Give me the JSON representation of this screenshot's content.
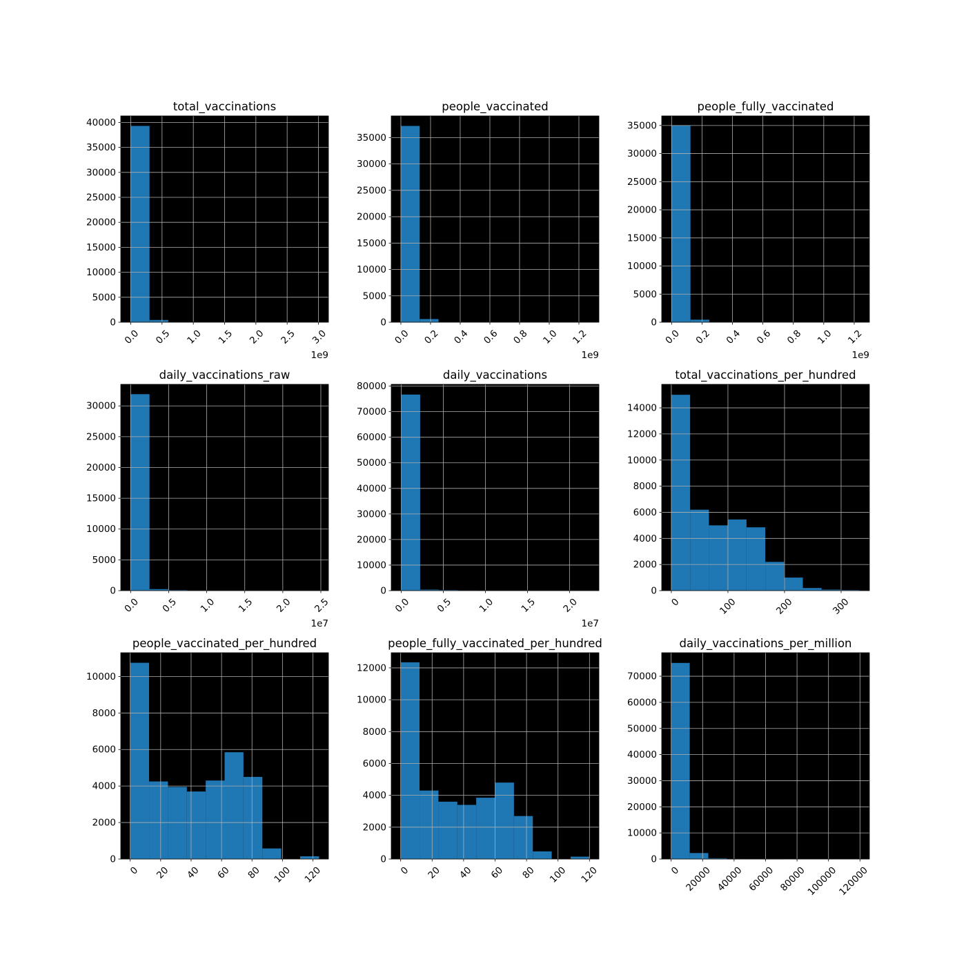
{
  "chart_data": [
    {
      "type": "bar",
      "title": "total_vaccinations",
      "xlim": [
        -0.16,
        3.16
      ],
      "ylim": [
        0,
        41300
      ],
      "x_ticks": [
        "0.0",
        "0.5",
        "1.0",
        "1.5",
        "2.0",
        "2.5",
        "3.0"
      ],
      "x_tick_values": [
        0,
        0.5,
        1.0,
        1.5,
        2.0,
        2.5,
        3.0
      ],
      "x_offset_label": "1e9",
      "y_ticks": [
        "0",
        "5000",
        "10000",
        "15000",
        "20000",
        "25000",
        "30000",
        "35000",
        "40000"
      ],
      "y_tick_values": [
        0,
        5000,
        10000,
        15000,
        20000,
        25000,
        30000,
        35000,
        40000
      ],
      "bin_edges": [
        0,
        0.3,
        0.6,
        0.9,
        1.2,
        1.5,
        1.8,
        2.1,
        2.4,
        2.7,
        3.0
      ],
      "values": [
        39300,
        450,
        0,
        0,
        0,
        0,
        0,
        0,
        0,
        0
      ],
      "grid": true
    },
    {
      "type": "bar",
      "title": "people_vaccinated",
      "xlim": [
        -0.065,
        1.335
      ],
      "ylim": [
        0,
        39100
      ],
      "x_ticks": [
        "0.0",
        "0.2",
        "0.4",
        "0.6",
        "0.8",
        "1.0",
        "1.2"
      ],
      "x_tick_values": [
        0,
        0.2,
        0.4,
        0.6,
        0.8,
        1.0,
        1.2
      ],
      "x_offset_label": "1e9",
      "y_ticks": [
        "0",
        "5000",
        "10000",
        "15000",
        "20000",
        "25000",
        "30000",
        "35000"
      ],
      "y_tick_values": [
        0,
        5000,
        10000,
        15000,
        20000,
        25000,
        30000,
        35000
      ],
      "bin_edges": [
        0,
        0.127,
        0.254,
        0.381,
        0.508,
        0.635,
        0.762,
        0.889,
        1.016,
        1.143,
        1.27
      ],
      "values": [
        37200,
        600,
        0,
        0,
        0,
        0,
        0,
        0,
        0,
        0
      ],
      "grid": true
    },
    {
      "type": "bar",
      "title": "people_fully_vaccinated",
      "xlim": [
        -0.065,
        1.3
      ],
      "ylim": [
        0,
        36700
      ],
      "x_ticks": [
        "0.0",
        "0.2",
        "0.4",
        "0.6",
        "0.8",
        "1.0",
        "1.2"
      ],
      "x_tick_values": [
        0,
        0.2,
        0.4,
        0.6,
        0.8,
        1.0,
        1.2
      ],
      "x_offset_label": "1e9",
      "y_ticks": [
        "0",
        "5000",
        "10000",
        "15000",
        "20000",
        "25000",
        "30000",
        "35000"
      ],
      "y_tick_values": [
        0,
        5000,
        10000,
        15000,
        20000,
        25000,
        30000,
        35000
      ],
      "bin_edges": [
        0,
        0.124,
        0.248,
        0.372,
        0.496,
        0.62,
        0.744,
        0.868,
        0.992,
        1.116,
        1.24
      ],
      "values": [
        35000,
        450,
        0,
        0,
        0,
        0,
        0,
        0,
        0,
        0
      ],
      "grid": true
    },
    {
      "type": "bar",
      "title": "daily_vaccinations_raw",
      "xlim": [
        -0.13,
        2.6
      ],
      "ylim": [
        0,
        33500
      ],
      "x_ticks": [
        "0.0",
        "0.5",
        "1.0",
        "1.5",
        "2.0",
        "2.5"
      ],
      "x_tick_values": [
        0,
        0.5,
        1.0,
        1.5,
        2.0,
        2.5
      ],
      "x_offset_label": "1e7",
      "y_ticks": [
        "0",
        "5000",
        "10000",
        "15000",
        "20000",
        "25000",
        "30000"
      ],
      "y_tick_values": [
        0,
        5000,
        10000,
        15000,
        20000,
        25000,
        30000
      ],
      "bin_edges": [
        0,
        0.248,
        0.496,
        0.744,
        0.992,
        1.24,
        1.488,
        1.736,
        1.984,
        2.232,
        2.48
      ],
      "values": [
        31900,
        250,
        100,
        60,
        40,
        30,
        0,
        0,
        0,
        0
      ],
      "grid": true
    },
    {
      "type": "bar",
      "title": "daily_vaccinations",
      "xlim": [
        -0.12,
        2.35
      ],
      "ylim": [
        0,
        80700
      ],
      "x_ticks": [
        "0.0",
        "0.5",
        "1.0",
        "1.5",
        "2.0"
      ],
      "x_tick_values": [
        0,
        0.5,
        1.0,
        1.5,
        2.0
      ],
      "x_offset_label": "1e7",
      "y_ticks": [
        "0",
        "10000",
        "20000",
        "30000",
        "40000",
        "50000",
        "60000",
        "70000",
        "80000"
      ],
      "y_tick_values": [
        0,
        10000,
        20000,
        30000,
        40000,
        50000,
        60000,
        70000,
        80000
      ],
      "bin_edges": [
        0,
        0.224,
        0.448,
        0.672,
        0.896,
        1.12,
        1.344,
        1.568,
        1.792,
        2.016,
        2.24
      ],
      "values": [
        76700,
        400,
        250,
        150,
        0,
        0,
        0,
        0,
        0,
        0
      ],
      "grid": true
    },
    {
      "type": "bar",
      "title": "total_vaccinations_per_hundred",
      "xlim": [
        -17,
        350
      ],
      "ylim": [
        0,
        15800
      ],
      "x_ticks": [
        "0",
        "100",
        "200",
        "300"
      ],
      "x_tick_values": [
        0,
        100,
        200,
        300
      ],
      "y_ticks": [
        "0",
        "2000",
        "4000",
        "6000",
        "8000",
        "10000",
        "12000",
        "14000"
      ],
      "y_tick_values": [
        0,
        2000,
        4000,
        6000,
        8000,
        10000,
        12000,
        14000
      ],
      "bin_edges": [
        0,
        33.2,
        66.4,
        99.6,
        132.8,
        166,
        199.2,
        232.4,
        265.6,
        298.8,
        332
      ],
      "values": [
        15000,
        6200,
        5000,
        5450,
        4850,
        2200,
        1000,
        200,
        80,
        50
      ],
      "grid": true
    },
    {
      "type": "bar",
      "title": "people_vaccinated_per_hundred",
      "xlim": [
        -6.2,
        130.2
      ],
      "ylim": [
        0,
        11300
      ],
      "x_ticks": [
        "0",
        "20",
        "40",
        "60",
        "80",
        "100",
        "120"
      ],
      "x_tick_values": [
        0,
        20,
        40,
        60,
        80,
        100,
        120
      ],
      "y_ticks": [
        "0",
        "2000",
        "4000",
        "6000",
        "8000",
        "10000"
      ],
      "y_tick_values": [
        0,
        2000,
        4000,
        6000,
        8000,
        10000
      ],
      "bin_edges": [
        0,
        12.4,
        24.8,
        37.2,
        49.6,
        62,
        74.4,
        86.8,
        99.2,
        111.6,
        124
      ],
      "values": [
        10750,
        4250,
        3950,
        3700,
        4300,
        5850,
        4500,
        580,
        0,
        150
      ],
      "grid": true
    },
    {
      "type": "bar",
      "title": "people_fully_vaccinated_per_hundred",
      "xlim": [
        -6.0,
        126.0
      ],
      "ylim": [
        0,
        12950
      ],
      "x_ticks": [
        "0",
        "20",
        "40",
        "60",
        "80",
        "100",
        "120"
      ],
      "x_tick_values": [
        0,
        20,
        40,
        60,
        80,
        100,
        120
      ],
      "y_ticks": [
        "0",
        "2000",
        "4000",
        "6000",
        "8000",
        "10000",
        "12000"
      ],
      "y_tick_values": [
        0,
        2000,
        4000,
        6000,
        8000,
        10000,
        12000
      ],
      "bin_edges": [
        0,
        12,
        24,
        36,
        48,
        60,
        72,
        84,
        96,
        108,
        120
      ],
      "values": [
        12350,
        4300,
        3600,
        3400,
        3850,
        4800,
        2700,
        480,
        0,
        150
      ],
      "grid": true
    },
    {
      "type": "bar",
      "title": "daily_vaccinations_per_million",
      "xlim": [
        -6000,
        126000
      ],
      "ylim": [
        0,
        79000
      ],
      "x_ticks": [
        "0",
        "20000",
        "40000",
        "60000",
        "80000",
        "100000",
        "120000"
      ],
      "x_tick_values": [
        0,
        20000,
        40000,
        60000,
        80000,
        100000,
        120000
      ],
      "y_ticks": [
        "0",
        "10000",
        "20000",
        "30000",
        "40000",
        "50000",
        "60000",
        "70000"
      ],
      "y_tick_values": [
        0,
        10000,
        20000,
        30000,
        40000,
        50000,
        60000,
        70000
      ],
      "bin_edges": [
        0,
        11800,
        23600,
        35400,
        47200,
        59000,
        70800,
        82600,
        94400,
        106200,
        118000
      ],
      "values": [
        75100,
        2300,
        300,
        80,
        30,
        20,
        0,
        0,
        0,
        0
      ],
      "grid": true
    }
  ],
  "colors": {
    "bar": "#1f77b4",
    "plot_background": "#000000",
    "grid": "#b0b0b0",
    "text": "#000000",
    "figure_background": "#ffffff"
  }
}
